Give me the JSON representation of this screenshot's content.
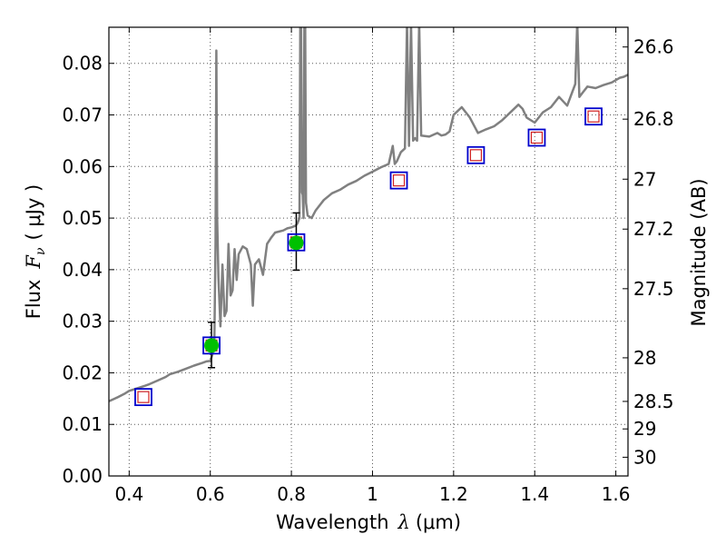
{
  "chart_data": {
    "type": "scatter",
    "xlabel": {
      "prefix": "Wavelength",
      "symbol": "λ",
      "units": "(μm)"
    },
    "ylabel": {
      "prefix": "Flux",
      "symbol": "F",
      "subscript": "ν",
      "units": "( μJy )"
    },
    "y2label": "Magnitude (AB)",
    "xlim": [
      0.35,
      1.63
    ],
    "ylim": [
      0.0,
      0.087
    ],
    "grid": true,
    "x_ticks": [
      0.4,
      0.6,
      0.8,
      1.0,
      1.2,
      1.4,
      1.6
    ],
    "x_tick_labels": [
      "0.4",
      "0.6",
      "0.8",
      "1",
      "1.2",
      "1.4",
      "1.6"
    ],
    "y_ticks": [
      0.0,
      0.01,
      0.02,
      0.03,
      0.04,
      0.05,
      0.06,
      0.07,
      0.08
    ],
    "y_tick_labels": [
      "0.00",
      "0.01",
      "0.02",
      "0.03",
      "0.04",
      "0.05",
      "0.06",
      "0.07",
      "0.08"
    ],
    "mag_ticks": [
      26.6,
      26.8,
      27,
      27.2,
      27.5,
      28,
      28.5,
      29,
      30
    ],
    "mag_tick_labels": [
      "26.6",
      "26.8",
      "27",
      "27.2",
      "27.5",
      "28",
      "28.5",
      "29",
      "30"
    ],
    "mag_zero_point": 23.9,
    "colors": {
      "spectrum": "#808080",
      "observed": "#00c000",
      "model_box": "#0000cc",
      "model_inner": "#d02020",
      "errorbar": "#000000",
      "grid": "#555555"
    },
    "observed_points": [
      {
        "x": 0.603,
        "y": 0.0253,
        "yerr": [
          0.0043,
          0.0045
        ]
      },
      {
        "x": 0.812,
        "y": 0.0452,
        "yerr": [
          0.0053,
          0.0058
        ]
      }
    ],
    "model_boxes": [
      {
        "x": 0.435,
        "y": 0.0153
      },
      {
        "x": 0.603,
        "y": 0.0253
      },
      {
        "x": 0.812,
        "y": 0.0453
      },
      {
        "x": 1.065,
        "y": 0.0573
      },
      {
        "x": 1.255,
        "y": 0.0622
      },
      {
        "x": 1.405,
        "y": 0.0656
      },
      {
        "x": 1.545,
        "y": 0.0697
      }
    ],
    "spectrum": {
      "x": [
        0.35,
        0.37,
        0.39,
        0.4,
        0.42,
        0.44,
        0.45,
        0.47,
        0.49,
        0.5,
        0.52,
        0.54,
        0.56,
        0.58,
        0.59,
        0.6,
        0.605,
        0.61,
        0.613,
        0.615,
        0.617,
        0.62,
        0.625,
        0.63,
        0.635,
        0.64,
        0.645,
        0.65,
        0.655,
        0.66,
        0.665,
        0.67,
        0.68,
        0.69,
        0.7,
        0.705,
        0.71,
        0.72,
        0.73,
        0.74,
        0.75,
        0.76,
        0.77,
        0.78,
        0.79,
        0.8,
        0.81,
        0.815,
        0.82,
        0.822,
        0.824,
        0.826,
        0.828,
        0.83,
        0.832,
        0.834,
        0.836,
        0.84,
        0.85,
        0.86,
        0.88,
        0.9,
        0.92,
        0.94,
        0.96,
        0.98,
        1.0,
        1.02,
        1.04,
        1.05,
        1.055,
        1.06,
        1.07,
        1.08,
        1.085,
        1.09,
        1.095,
        1.1,
        1.105,
        1.11,
        1.115,
        1.12,
        1.14,
        1.16,
        1.17,
        1.18,
        1.19,
        1.2,
        1.22,
        1.24,
        1.26,
        1.28,
        1.3,
        1.32,
        1.34,
        1.36,
        1.37,
        1.38,
        1.4,
        1.42,
        1.44,
        1.46,
        1.48,
        1.5,
        1.505,
        1.51,
        1.52,
        1.53,
        1.55,
        1.57,
        1.59,
        1.61,
        1.62,
        1.63
      ],
      "y": [
        0.0145,
        0.0152,
        0.016,
        0.0165,
        0.017,
        0.0175,
        0.0178,
        0.0185,
        0.0192,
        0.0197,
        0.0202,
        0.0208,
        0.0214,
        0.0219,
        0.0222,
        0.0223,
        0.0235,
        0.026,
        0.045,
        0.0825,
        0.05,
        0.0385,
        0.029,
        0.041,
        0.031,
        0.032,
        0.045,
        0.035,
        0.036,
        0.044,
        0.038,
        0.043,
        0.0445,
        0.044,
        0.041,
        0.033,
        0.041,
        0.042,
        0.039,
        0.045,
        0.0462,
        0.0472,
        0.0474,
        0.0476,
        0.048,
        0.0482,
        0.0485,
        0.049,
        0.05,
        0.088,
        0.088,
        0.055,
        0.0545,
        0.05,
        0.088,
        0.088,
        0.053,
        0.0505,
        0.05,
        0.0515,
        0.0535,
        0.0548,
        0.0555,
        0.0565,
        0.0572,
        0.0582,
        0.059,
        0.0598,
        0.0605,
        0.064,
        0.0605,
        0.061,
        0.0628,
        0.0635,
        0.088,
        0.064,
        0.088,
        0.065,
        0.0655,
        0.065,
        0.088,
        0.066,
        0.0658,
        0.0665,
        0.066,
        0.0662,
        0.0668,
        0.07,
        0.0715,
        0.0695,
        0.0665,
        0.0672,
        0.0678,
        0.069,
        0.0705,
        0.072,
        0.0712,
        0.0695,
        0.0685,
        0.0705,
        0.0715,
        0.0735,
        0.0718,
        0.076,
        0.088,
        0.0735,
        0.0745,
        0.0755,
        0.0752,
        0.0758,
        0.0763,
        0.0772,
        0.0774,
        0.0778
      ]
    }
  }
}
